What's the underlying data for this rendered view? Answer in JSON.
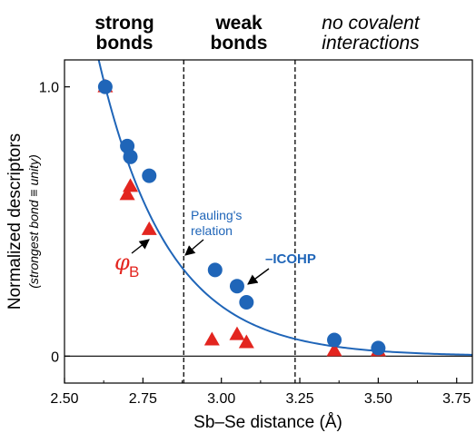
{
  "chart_data": {
    "type": "scatter",
    "xlabel": "Sb–Se distance (Å)",
    "ylabel": "Normalized descriptors",
    "ylabel_sub": "(strongest bond ≡ unity)",
    "xlim": [
      2.5,
      3.8
    ],
    "ylim": [
      -0.1,
      1.1
    ],
    "x_ticks": [
      2.5,
      2.75,
      3.0,
      3.25,
      3.5,
      3.75
    ],
    "x_tick_labels": [
      "2.50",
      "2.75",
      "3.00",
      "3.25",
      "3.50",
      "3.75"
    ],
    "y_ticks": [
      0,
      1.0
    ],
    "y_tick_labels": [
      "0",
      "1.0"
    ],
    "regions": [
      {
        "lines": [
          "strong",
          "bonds"
        ],
        "style": "bold"
      },
      {
        "lines": [
          "weak",
          "bonds"
        ],
        "style": "bold"
      },
      {
        "lines": [
          "no covalent",
          "interactions"
        ],
        "style": "italic"
      }
    ],
    "region_boundaries": [
      2.88,
      3.235
    ],
    "series": [
      {
        "marker": "circle",
        "color": "#1f65b8",
        "points": [
          [
            2.63,
            1.0
          ],
          [
            2.7,
            0.78
          ],
          [
            2.71,
            0.74
          ],
          [
            2.77,
            0.67
          ],
          [
            2.98,
            0.32
          ],
          [
            3.05,
            0.26
          ],
          [
            3.08,
            0.2
          ],
          [
            3.36,
            0.06
          ],
          [
            3.5,
            0.03
          ]
        ]
      },
      {
        "marker": "triangle",
        "color": "#e3251f",
        "points": [
          [
            2.63,
            1.0
          ],
          [
            2.71,
            0.63
          ],
          [
            2.7,
            0.6
          ],
          [
            2.77,
            0.47
          ],
          [
            2.97,
            0.06
          ],
          [
            3.05,
            0.08
          ],
          [
            3.08,
            0.05
          ],
          [
            3.36,
            0.02
          ],
          [
            3.5,
            0.02
          ]
        ]
      }
    ],
    "fit_curve": {
      "color": "#1f65b8",
      "x0": 2.63,
      "b": 0.22,
      "x_range": [
        2.6,
        3.8
      ]
    },
    "annotations": [
      {
        "text_lines": [
          "Pauling's",
          "relation"
        ],
        "target": [
          2.88,
          0.36
        ],
        "color": "#1f65b8"
      },
      {
        "text": "–ICOHP",
        "target": [
          3.06,
          0.28
        ],
        "color": "#1f65b8",
        "bold": true
      },
      {
        "symbol": "φ",
        "subscript": "B",
        "target": [
          2.77,
          0.47
        ],
        "color": "#e3251f"
      }
    ]
  }
}
